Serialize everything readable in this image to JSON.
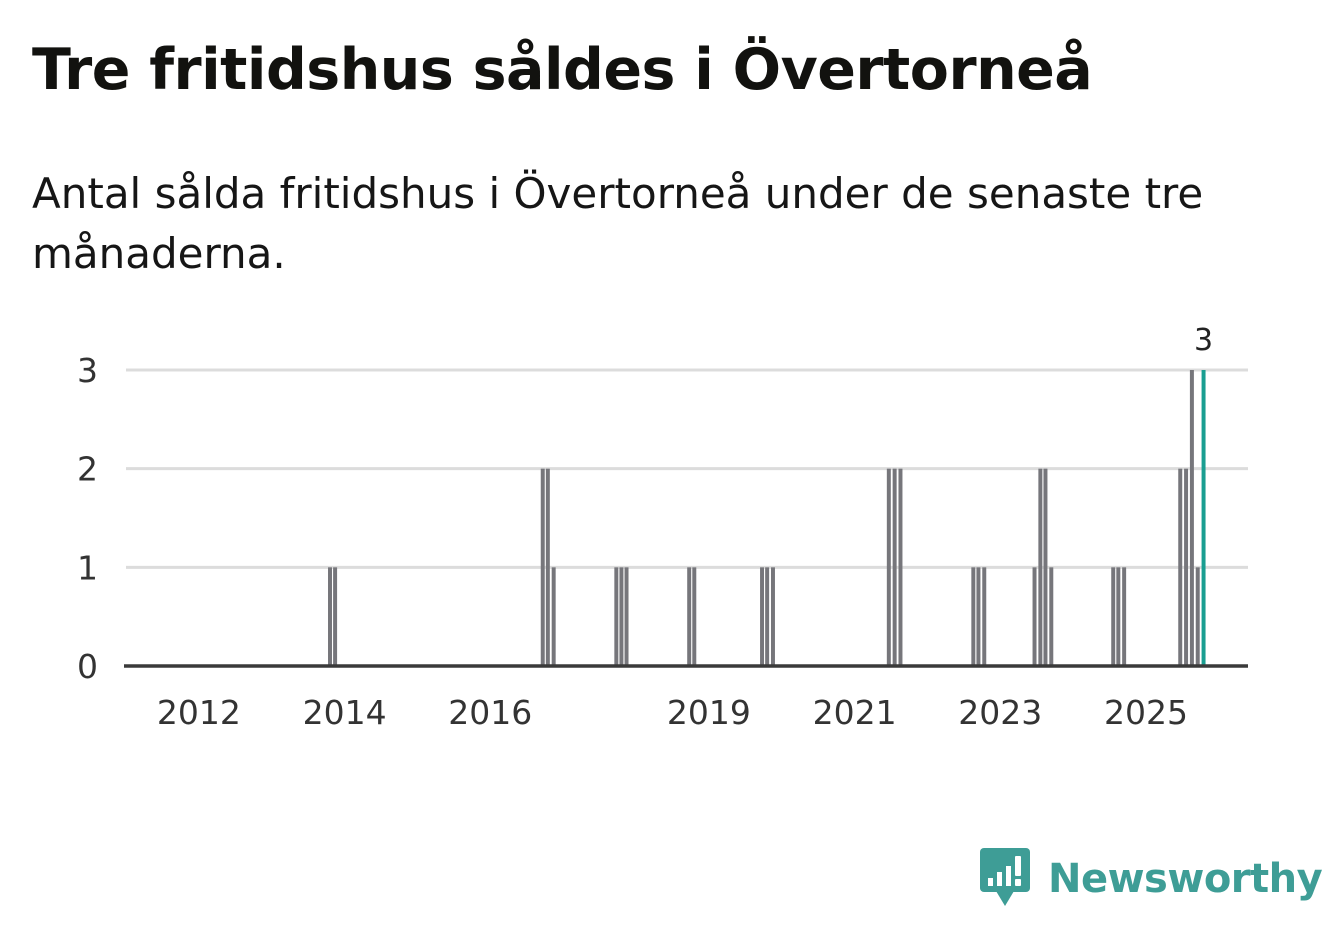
{
  "header": {
    "title": "Tre fritidshus såldes i Övertorneå",
    "subtitle": "Antal sålda fritidshus i Övertorneå under de senaste tre månaderna."
  },
  "brand": {
    "name": "Newsworthy",
    "color": "#3e9d96",
    "icon": "newsworthy-logo-icon"
  },
  "colors": {
    "bar": "#76767b",
    "highlight": "#1a9e91",
    "grid": "#dcdcdc",
    "axis": "#3a3a3a"
  },
  "chart_data": {
    "type": "bar",
    "title": "Tre fritidshus såldes i Övertorneå",
    "subtitle": "Antal sålda fritidshus i Övertorneå under de senaste tre månaderna.",
    "xlabel": "",
    "ylabel": "",
    "x_range": [
      2011.0,
      2026.4
    ],
    "ylim": [
      0,
      3
    ],
    "y_ticks": [
      0,
      1,
      2,
      3
    ],
    "x_ticks": [
      {
        "year": 2012,
        "label": "2012"
      },
      {
        "year": 2014,
        "label": "2014"
      },
      {
        "year": 2016,
        "label": "2016"
      },
      {
        "year": 2019,
        "label": "2019"
      },
      {
        "year": 2021,
        "label": "2021"
      },
      {
        "year": 2023,
        "label": "2023"
      },
      {
        "year": 2025,
        "label": "2025"
      }
    ],
    "grid": true,
    "bar_width_years": 0.07,
    "series": [
      {
        "name": "Antal sålda fritidshus",
        "points": [
          {
            "x": 2013.8,
            "value": 1
          },
          {
            "x": 2013.87,
            "value": 1
          },
          {
            "x": 2016.72,
            "value": 2
          },
          {
            "x": 2016.79,
            "value": 2
          },
          {
            "x": 2016.87,
            "value": 1
          },
          {
            "x": 2017.73,
            "value": 1
          },
          {
            "x": 2017.8,
            "value": 1
          },
          {
            "x": 2017.87,
            "value": 1
          },
          {
            "x": 2018.73,
            "value": 1
          },
          {
            "x": 2018.8,
            "value": 1
          },
          {
            "x": 2019.73,
            "value": 1
          },
          {
            "x": 2019.8,
            "value": 1
          },
          {
            "x": 2019.88,
            "value": 1
          },
          {
            "x": 2021.47,
            "value": 2
          },
          {
            "x": 2021.55,
            "value": 2
          },
          {
            "x": 2021.63,
            "value": 2
          },
          {
            "x": 2022.63,
            "value": 1
          },
          {
            "x": 2022.7,
            "value": 1
          },
          {
            "x": 2022.78,
            "value": 1
          },
          {
            "x": 2023.47,
            "value": 1
          },
          {
            "x": 2023.55,
            "value": 2
          },
          {
            "x": 2023.62,
            "value": 2
          },
          {
            "x": 2023.7,
            "value": 1
          },
          {
            "x": 2024.55,
            "value": 1
          },
          {
            "x": 2024.62,
            "value": 1
          },
          {
            "x": 2024.7,
            "value": 1
          },
          {
            "x": 2025.47,
            "value": 2
          },
          {
            "x": 2025.55,
            "value": 2
          },
          {
            "x": 2025.63,
            "value": 3
          },
          {
            "x": 2025.71,
            "value": 1
          },
          {
            "x": 2025.79,
            "value": 3,
            "highlight": true,
            "label": "3"
          }
        ]
      }
    ]
  }
}
